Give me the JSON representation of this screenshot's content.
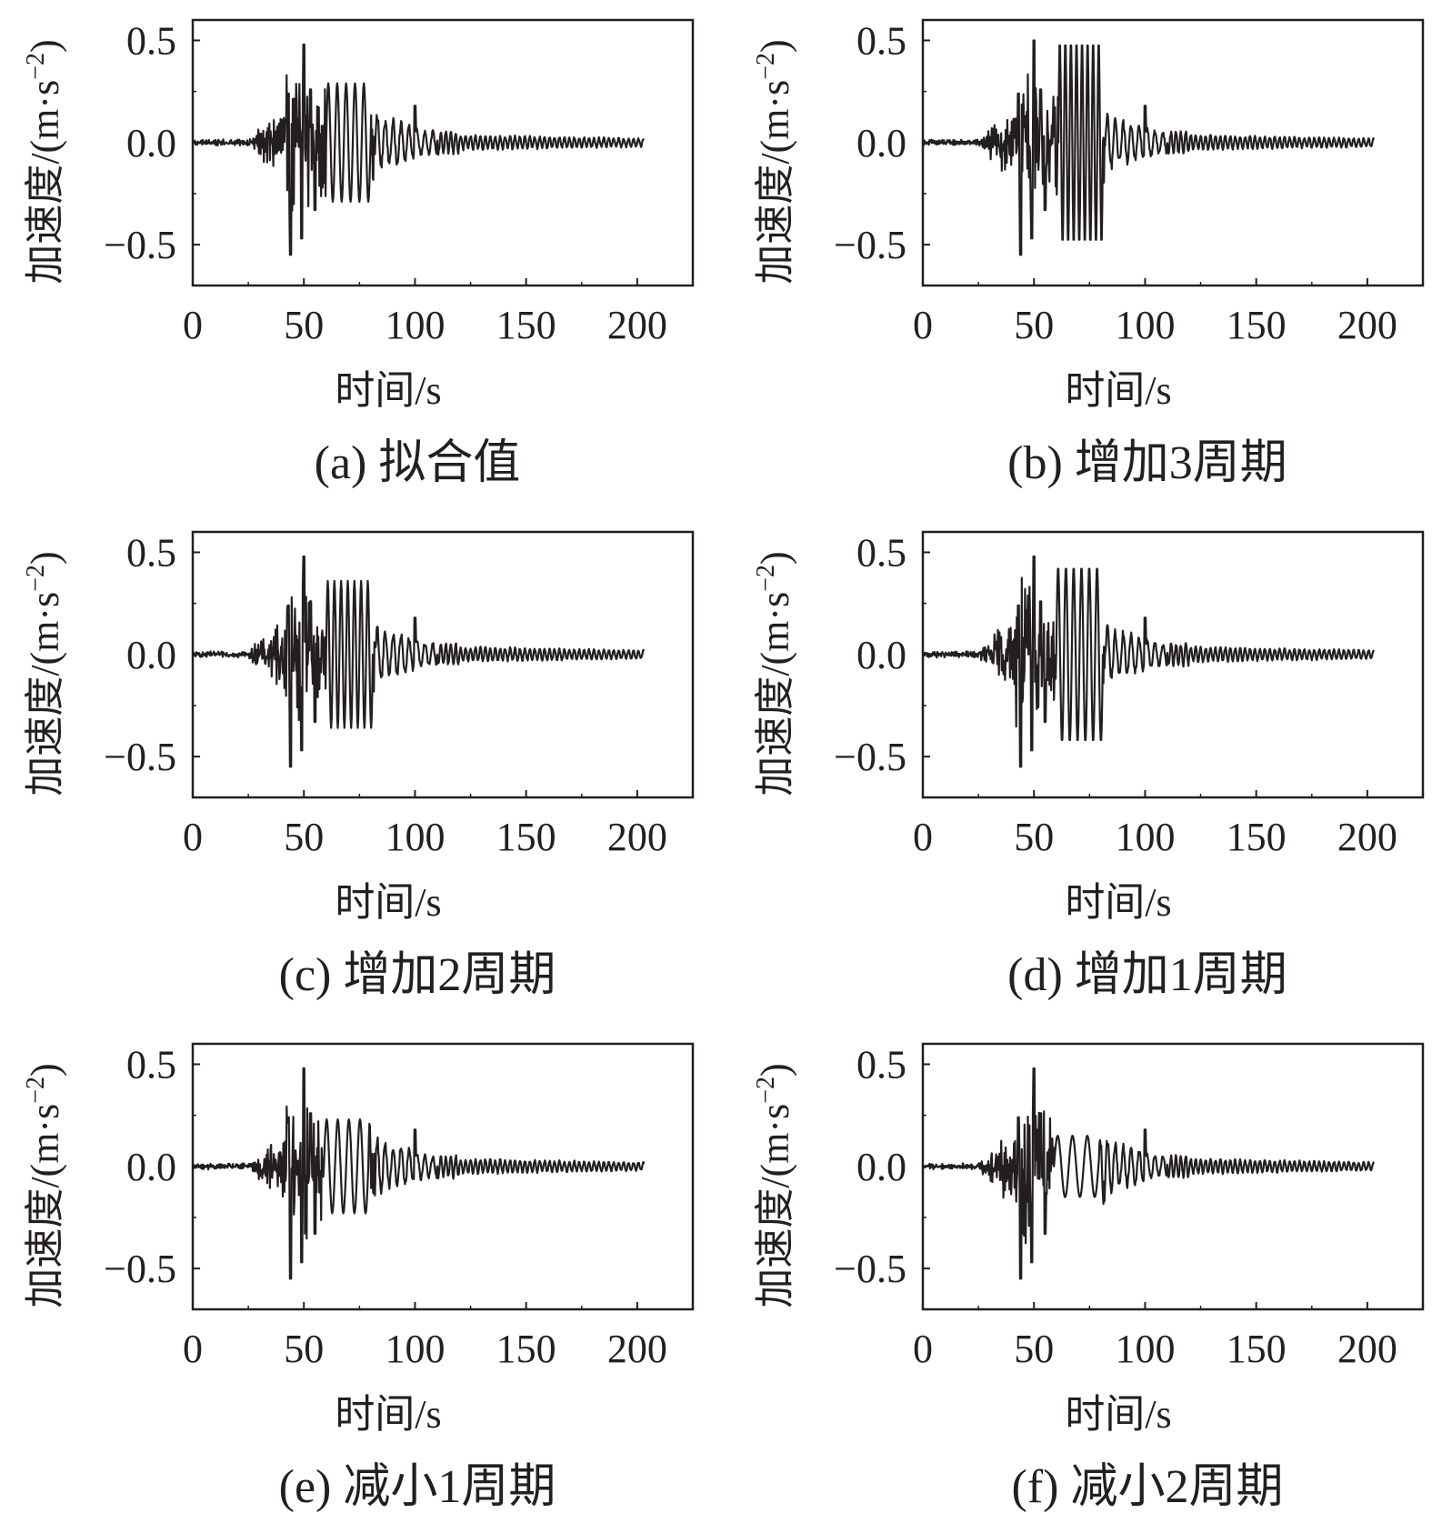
{
  "figure": {
    "ylabel_main": "加速度/(m·s",
    "ylabel_exp": "−2",
    "ylabel_close": ")",
    "xlabel": "时间/s"
  },
  "chart_data": [
    {
      "type": "line",
      "id": "a",
      "caption": "(a) 拟合值",
      "xlim": [
        0,
        225
      ],
      "ylim": [
        -0.7,
        0.6
      ],
      "xticks": [
        0,
        50,
        100,
        150,
        200
      ],
      "xtick_labels": [
        "0",
        "50",
        "100",
        "150",
        "200"
      ],
      "yticks": [
        0.5,
        0.0,
        -0.5
      ],
      "ytick_labels": [
        "0.5",
        "0.0",
        "−0.5"
      ],
      "xlabel": "时间/s",
      "ylabel": "加速度/(m·s−2)",
      "series": [
        {
          "x_range": [
            0,
            203
          ],
          "peak_positive": 0.48,
          "peak_negative": -0.55,
          "modified_segment": {
            "start": 60,
            "end": 80,
            "cycles": 5,
            "amplitude": 0.29
          }
        }
      ]
    },
    {
      "type": "line",
      "id": "b",
      "caption": "(b) 增加3周期",
      "xlim": [
        0,
        225
      ],
      "ylim": [
        -0.7,
        0.6
      ],
      "xticks": [
        0,
        50,
        100,
        150,
        200
      ],
      "xtick_labels": [
        "0",
        "50",
        "100",
        "150",
        "200"
      ],
      "yticks": [
        0.5,
        0.0,
        -0.5
      ],
      "ytick_labels": [
        "0.5",
        "0.0",
        "−0.5"
      ],
      "xlabel": "时间/s",
      "ylabel": "加速度/(m·s−2)",
      "series": [
        {
          "x_range": [
            0,
            203
          ],
          "peak_positive": 0.5,
          "peak_negative": -0.55,
          "modified_segment": {
            "start": 61,
            "end": 81,
            "cycles": 8,
            "amplitude": 0.5
          }
        }
      ]
    },
    {
      "type": "line",
      "id": "c",
      "caption": "(c) 增加2周期",
      "xlim": [
        0,
        225
      ],
      "ylim": [
        -0.7,
        0.6
      ],
      "xticks": [
        0,
        50,
        100,
        150,
        200
      ],
      "xtick_labels": [
        "0",
        "50",
        "100",
        "150",
        "200"
      ],
      "yticks": [
        0.5,
        0.0,
        -0.5
      ],
      "ytick_labels": [
        "0.5",
        "0.0",
        "−0.5"
      ],
      "xlabel": "时间/s",
      "ylabel": "加速度/(m·s−2)",
      "series": [
        {
          "x_range": [
            0,
            203
          ],
          "peak_positive": 0.48,
          "peak_negative": -0.55,
          "modified_segment": {
            "start": 60,
            "end": 81,
            "cycles": 7,
            "amplitude": 0.36
          }
        }
      ]
    },
    {
      "type": "line",
      "id": "d",
      "caption": "(d) 增加1周期",
      "xlim": [
        0,
        225
      ],
      "ylim": [
        -0.7,
        0.6
      ],
      "xticks": [
        0,
        50,
        100,
        150,
        200
      ],
      "xtick_labels": [
        "0",
        "50",
        "100",
        "150",
        "200"
      ],
      "yticks": [
        0.5,
        0.0,
        -0.5
      ],
      "ytick_labels": [
        "0.5",
        "0.0",
        "−0.5"
      ],
      "xlabel": "时间/s",
      "ylabel": "加速度/(m·s−2)",
      "series": [
        {
          "x_range": [
            0,
            203
          ],
          "peak_positive": 0.48,
          "peak_negative": -0.55,
          "modified_segment": {
            "start": 60,
            "end": 81,
            "cycles": 6,
            "amplitude": 0.43
          }
        }
      ]
    },
    {
      "type": "line",
      "id": "e",
      "caption": "(e) 减小1周期",
      "xlim": [
        0,
        225
      ],
      "ylim": [
        -0.7,
        0.6
      ],
      "xticks": [
        0,
        50,
        100,
        150,
        200
      ],
      "xtick_labels": [
        "0",
        "50",
        "100",
        "150",
        "200"
      ],
      "yticks": [
        0.5,
        0.0,
        -0.5
      ],
      "ytick_labels": [
        "0.5",
        "0.0",
        "−0.5"
      ],
      "xlabel": "时间/s",
      "ylabel": "加速度/(m·s−2)",
      "series": [
        {
          "x_range": [
            0,
            203
          ],
          "peak_positive": 0.48,
          "peak_negative": -0.55,
          "modified_segment": {
            "start": 59,
            "end": 79,
            "cycles": 4,
            "amplitude": 0.23
          }
        }
      ]
    },
    {
      "type": "line",
      "id": "f",
      "caption": "(f) 减小2周期",
      "xlim": [
        0,
        225
      ],
      "ylim": [
        -0.7,
        0.6
      ],
      "xticks": [
        0,
        50,
        100,
        150,
        200
      ],
      "xtick_labels": [
        "0",
        "50",
        "100",
        "150",
        "200"
      ],
      "yticks": [
        0.5,
        0.0,
        -0.5
      ],
      "ytick_labels": [
        "0.5",
        "0.0",
        "−0.5"
      ],
      "xlabel": "时间/s",
      "ylabel": "加速度/(m·s−2)",
      "series": [
        {
          "x_range": [
            0,
            203
          ],
          "peak_positive": 0.48,
          "peak_negative": -0.55,
          "modified_segment": {
            "start": 59,
            "end": 79,
            "cycles": 3,
            "amplitude": 0.15
          }
        }
      ]
    }
  ]
}
